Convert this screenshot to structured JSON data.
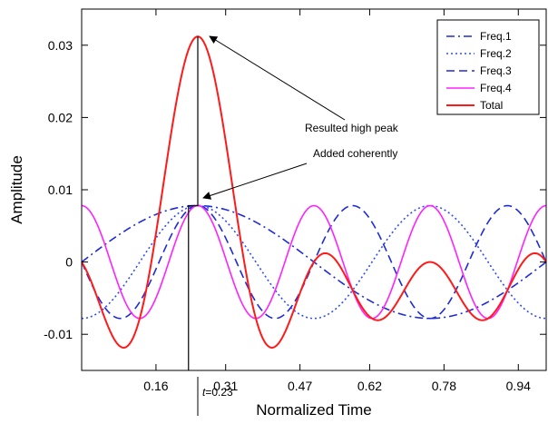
{
  "chart_data": {
    "type": "line",
    "xlabel": "Normalized Time",
    "ylabel": "Amplitude",
    "xlim": [
      0,
      1
    ],
    "ylim": [
      -0.015,
      0.035
    ],
    "x_ticks": [
      0.16,
      0.31,
      0.47,
      0.62,
      0.78,
      0.94
    ],
    "x_tick_labels": [
      "0.16",
      "0.31",
      "0.47",
      "0.62",
      "0.78",
      "0.94"
    ],
    "y_ticks": [
      -0.01,
      0,
      0.01,
      0.02,
      0.03
    ],
    "y_tick_labels": [
      "-0.01",
      "0",
      "0.01",
      "0.02",
      "0.03"
    ],
    "grid": false,
    "legend_position": "top-right",
    "series": [
      {
        "name": "Freq.1",
        "color": "#1f2bd6",
        "dash": "dashdot",
        "frequency": 1,
        "amplitude": 0.0078,
        "peak_at": 0.25
      },
      {
        "name": "Freq.2",
        "color": "#2f4bff",
        "dash": "dotted",
        "frequency": 2,
        "amplitude": 0.0078,
        "peak_at": 0.25
      },
      {
        "name": "Freq.3",
        "color": "#1f2bd6",
        "dash": "dashed",
        "frequency": 3,
        "amplitude": 0.0078,
        "peak_at": 0.25
      },
      {
        "name": "Freq.4",
        "color": "#ff22ff",
        "dash": "solid",
        "frequency": 4,
        "amplitude": 0.0078,
        "peak_at": 0.25
      },
      {
        "name": "Total",
        "color": "#ff1a1a",
        "dash": "solid",
        "sum_of": [
          "Freq.1",
          "Freq.2",
          "Freq.3",
          "Freq.4"
        ]
      }
    ],
    "marker_line": {
      "x": 0.23,
      "color": "#000000",
      "label_prefix": "t",
      "label_value": "=0.23"
    },
    "annotations": [
      {
        "text": "Resulted high peak",
        "points_to": [
          0.25,
          0.0312
        ]
      },
      {
        "text": "Added coherently",
        "points_to": [
          0.25,
          0.0078
        ]
      }
    ]
  }
}
